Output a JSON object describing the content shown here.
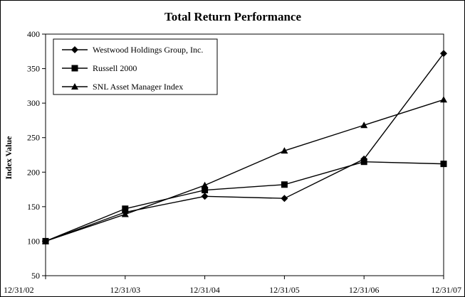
{
  "chart_data": {
    "type": "line",
    "title": "Total Return Performance",
    "xlabel": "",
    "ylabel": "Index Value",
    "categories": [
      "12/31/02",
      "12/31/03",
      "12/31/04",
      "12/31/05",
      "12/31/06",
      "12/31/07"
    ],
    "ylim": [
      50,
      400
    ],
    "yticks": [
      50,
      100,
      150,
      200,
      250,
      300,
      350,
      400
    ],
    "grid": false,
    "legend_position": "top-left",
    "series": [
      {
        "name": "Westwood Holdings Group, Inc.",
        "marker": "diamond",
        "values": [
          100,
          142,
          165,
          162,
          219,
          372
        ]
      },
      {
        "name": "Russell 2000",
        "marker": "square",
        "values": [
          100,
          147,
          174,
          182,
          215,
          212
        ]
      },
      {
        "name": "SNL Asset Manager Index",
        "marker": "triangle",
        "values": [
          100,
          139,
          181,
          231,
          268,
          305
        ]
      }
    ],
    "line_color": "#000000"
  }
}
